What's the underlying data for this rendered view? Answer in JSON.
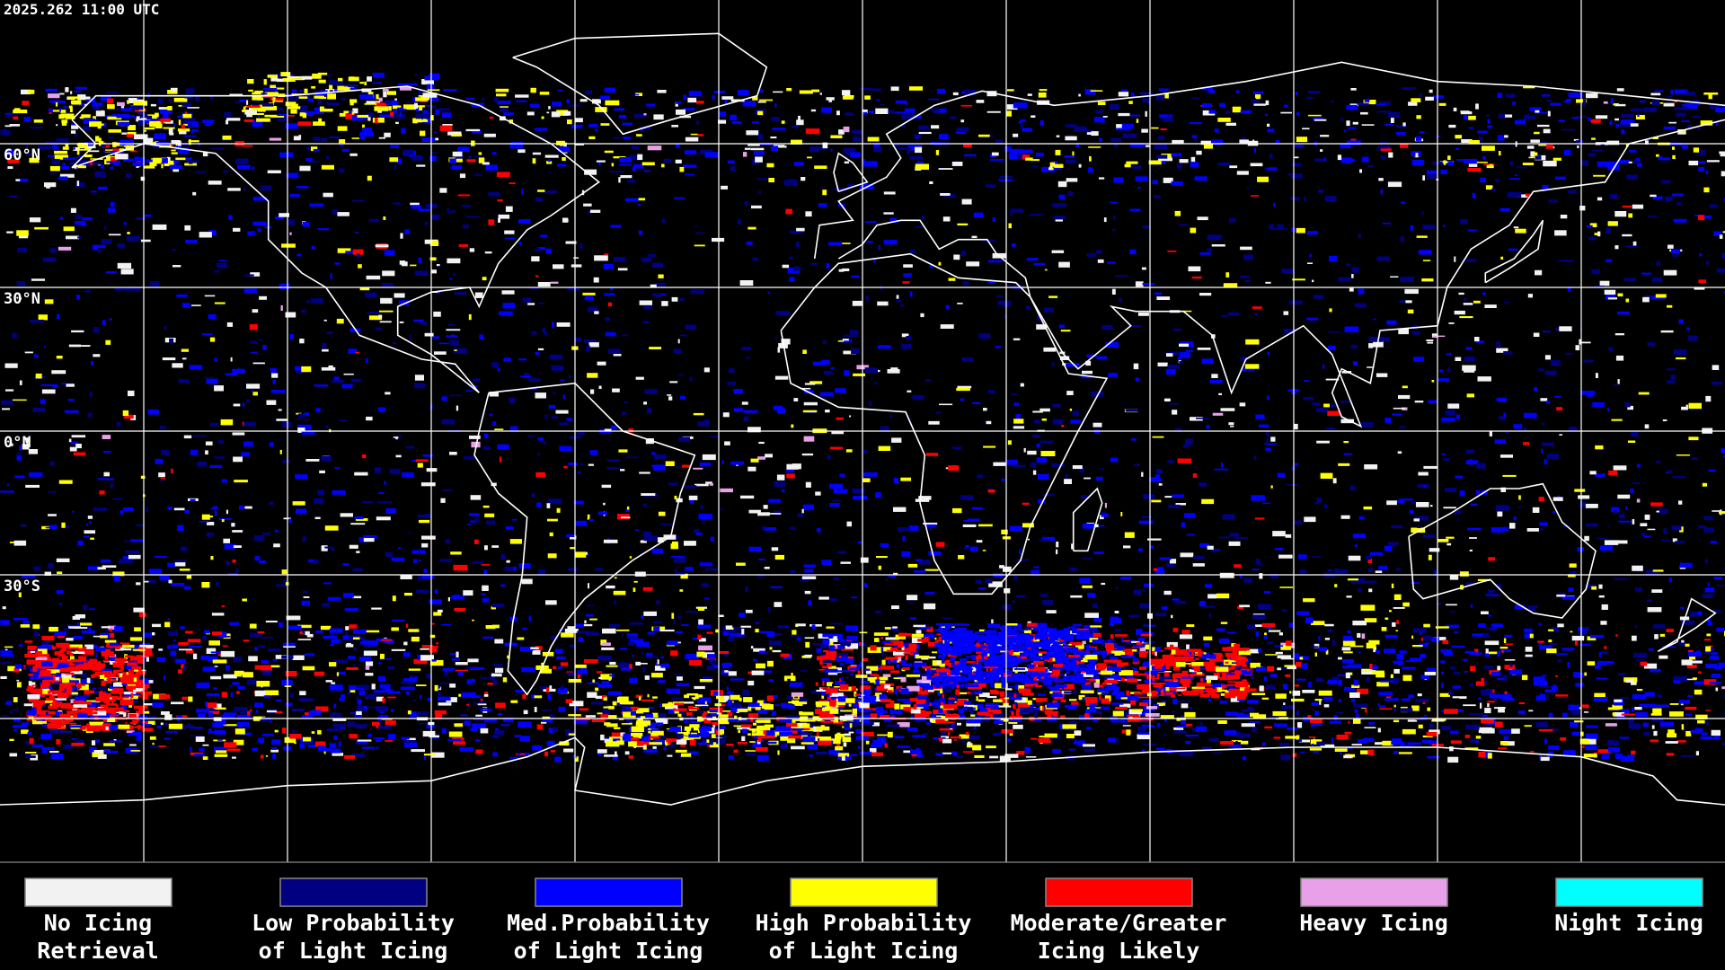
{
  "header": {
    "timestamp": "2025.262 11:00 UTC"
  },
  "map": {
    "latitude_labels": [
      "60°N",
      "30°N",
      "0°N",
      "30°S"
    ]
  },
  "legend": {
    "items": [
      {
        "lines": [
          "No Icing",
          "Retrieval"
        ],
        "color": "#f2f2f2"
      },
      {
        "lines": [
          "Low Probability",
          "of Light Icing"
        ],
        "color": "#000080"
      },
      {
        "lines": [
          "Med.Probability",
          "of Light Icing"
        ],
        "color": "#0000ff"
      },
      {
        "lines": [
          "High Probability",
          "of Light Icing"
        ],
        "color": "#ffff00"
      },
      {
        "lines": [
          "Moderate/Greater",
          "Icing Likely"
        ],
        "color": "#ff0000"
      },
      {
        "lines": [
          "Heavy Icing"
        ],
        "color": "#e8a0e8"
      },
      {
        "lines": [
          "Night Icing"
        ],
        "color": "#00ffff"
      }
    ]
  }
}
